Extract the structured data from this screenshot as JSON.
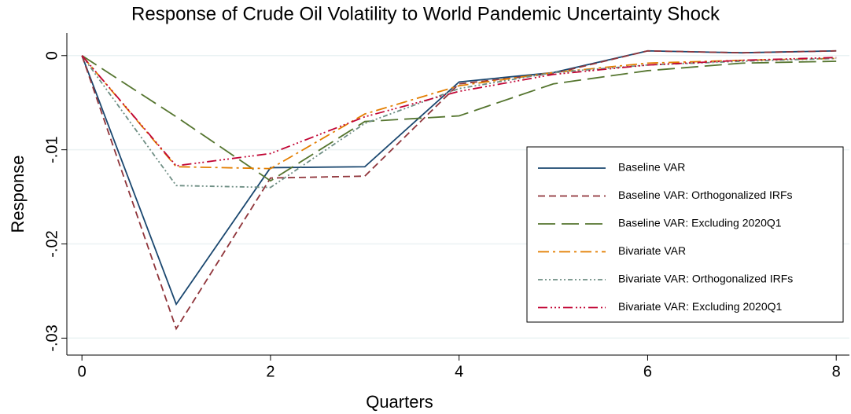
{
  "chart_data": {
    "type": "line",
    "title": "Response of Crude Oil Volatility to World Pandemic Uncertainty Shock",
    "xlabel": "Quarters",
    "ylabel": "Response",
    "x": [
      0,
      1,
      2,
      3,
      4,
      5,
      6,
      7,
      8
    ],
    "xlim": [
      -0.16,
      8.14
    ],
    "xticks": [
      0,
      2,
      4,
      6,
      8
    ],
    "ylim": [
      -0.0318,
      0.0024
    ],
    "yticks": [
      {
        "value": 0,
        "label": "0"
      },
      {
        "value": -0.01,
        "label": "-.01"
      },
      {
        "value": -0.02,
        "label": "-.02"
      },
      {
        "value": -0.03,
        "label": "-.03"
      }
    ],
    "grid": true,
    "legend": "right",
    "series": [
      {
        "name": "Baseline VAR",
        "color": "#1a476f",
        "values": [
          0,
          -0.0264,
          -0.0119,
          -0.0118,
          -0.0028,
          -0.0018,
          0.0005,
          0.0003,
          0.0005
        ]
      },
      {
        "name": "Baseline VAR: Orthogonalized IRFs",
        "color": "#90353b",
        "values": [
          0,
          -0.029,
          -0.013,
          -0.0128,
          -0.003,
          -0.0019,
          0.0005,
          0.0003,
          0.0005
        ]
      },
      {
        "name": "Baseline VAR: Excluding 2020Q1",
        "color": "#55752f",
        "values": [
          0,
          -0.0065,
          -0.0133,
          -0.007,
          -0.0064,
          -0.003,
          -0.0016,
          -0.0008,
          -0.0006
        ]
      },
      {
        "name": "Bivariate VAR",
        "color": "#e37e00",
        "values": [
          0,
          -0.0118,
          -0.012,
          -0.0062,
          -0.0032,
          -0.0018,
          -0.0008,
          -0.0005,
          -0.0003
        ]
      },
      {
        "name": "Bivariate VAR: Orthogonalized IRFs",
        "color": "#6e8e84",
        "values": [
          0,
          -0.0138,
          -0.014,
          -0.0072,
          -0.0035,
          -0.0018,
          -0.001,
          -0.0006,
          -0.0003
        ]
      },
      {
        "name": "Bivariate VAR: Excluding 2020Q1",
        "color": "#c10534",
        "values": [
          0,
          -0.0117,
          -0.0104,
          -0.0065,
          -0.0038,
          -0.002,
          -0.001,
          -0.0005,
          -0.0002
        ]
      }
    ]
  }
}
